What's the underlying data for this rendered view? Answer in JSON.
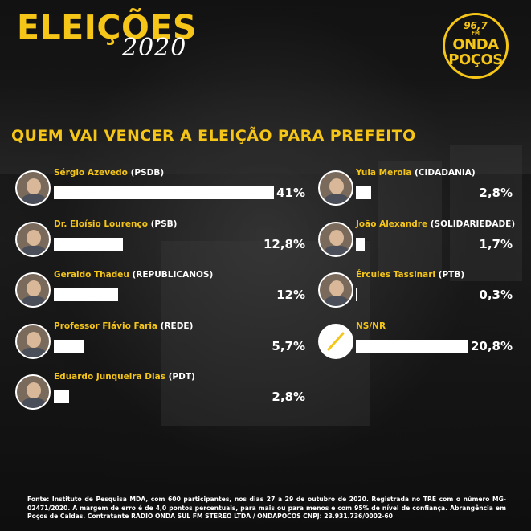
{
  "header": {
    "title": "ELEIÇÕES",
    "year": "2020",
    "radio": {
      "freq": "96,7",
      "band": "FM",
      "line1": "ONDA",
      "line2": "POÇOS"
    }
  },
  "headline": "QUEM VAI VENCER A ELEIÇÃO PARA PREFEITO",
  "chart_data": {
    "type": "bar",
    "title": "QUEM VAI VENCER A ELEIÇÃO PARA PREFEITO",
    "unit": "%",
    "max": 41,
    "candidates": [
      {
        "name": "Sérgio Azevedo",
        "party": "(PSDB)",
        "value": 41,
        "label": "41%"
      },
      {
        "name": "Dr. Eloísio Lourenço",
        "party": "(PSB)",
        "value": 12.8,
        "label": "12,8%"
      },
      {
        "name": "Geraldo Thadeu",
        "party": "(REPUBLICANOS)",
        "value": 12,
        "label": "12%"
      },
      {
        "name": "Professor Flávio Faria",
        "party": "(REDE)",
        "value": 5.7,
        "label": "5,7%"
      },
      {
        "name": "Eduardo Junqueira Dias",
        "party": "(PDT)",
        "value": 2.8,
        "label": "2,8%"
      },
      {
        "name": "Yula Merola",
        "party": "(CIDADANIA)",
        "value": 2.8,
        "label": "2,8%"
      },
      {
        "name": "João Alexandre",
        "party": "(SOLIDARIEDADE)",
        "value": 1.7,
        "label": "1,7%"
      },
      {
        "name": "Ércules Tassinari",
        "party": "(PTB)",
        "value": 0.3,
        "label": "0,3%"
      },
      {
        "name": "NS/NR",
        "party": "",
        "value": 20.8,
        "label": "20,8%"
      }
    ]
  },
  "footer": "Fonte: Instituto de Pesquisa MDA, com 600 participantes, nos dias 27 a 29 de outubro de 2020. Registrada no TRE com o número MG-02471/2020. A margem de erro é de 4,0 pontos percentuais, para mais ou para menos e com 95% de nível de confiança. Abrangência em Poços de Caldas. Contratante RADIO ONDA SUL FM STEREO LTDA / ONDAPOCOS CNPJ: 23.931.736/0002-60"
}
